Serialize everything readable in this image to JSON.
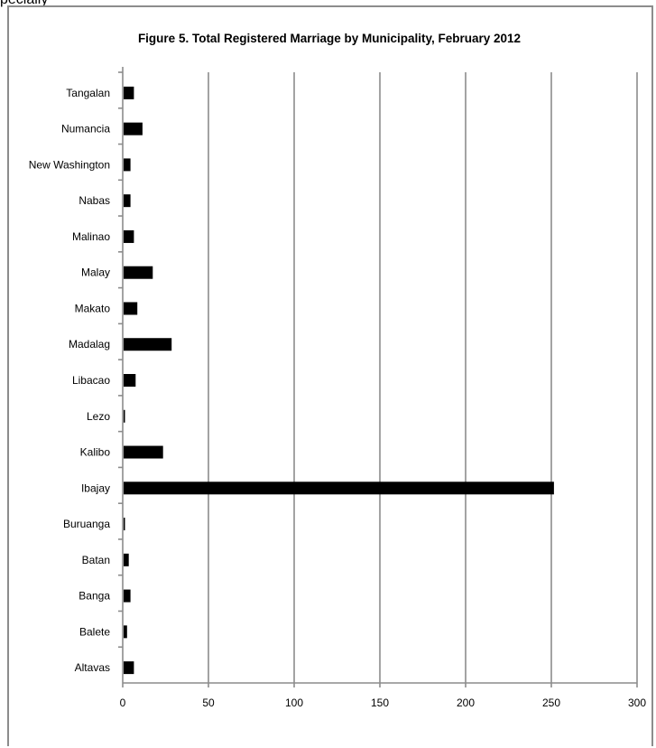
{
  "top_text": "                                           pecially",
  "chart_data": {
    "type": "bar",
    "orientation": "horizontal",
    "title": "Figure 5. Total Registered Marriage by Municipality, February 2012",
    "categories": [
      "Tangalan",
      "Numancia",
      "New Washington",
      "Nabas",
      "Malinao",
      "Malay",
      "Makato",
      "Madalag",
      "Libacao",
      "Lezo",
      "Kalibo",
      "Ibajay",
      "Buruanga",
      "Batan",
      "Banga",
      "Balete",
      "Altavas"
    ],
    "values": [
      6,
      11,
      4,
      4,
      6,
      17,
      8,
      28,
      7,
      0,
      23,
      251,
      0,
      3,
      4,
      2,
      6
    ],
    "xlim": [
      0,
      300
    ],
    "xticks": [
      "0",
      "50",
      "100",
      "150",
      "200",
      "250",
      "300"
    ],
    "grid": true,
    "colors": {
      "bar": "#000000",
      "grid": "#8c8c8c",
      "axis": "#8c8c8c"
    }
  }
}
